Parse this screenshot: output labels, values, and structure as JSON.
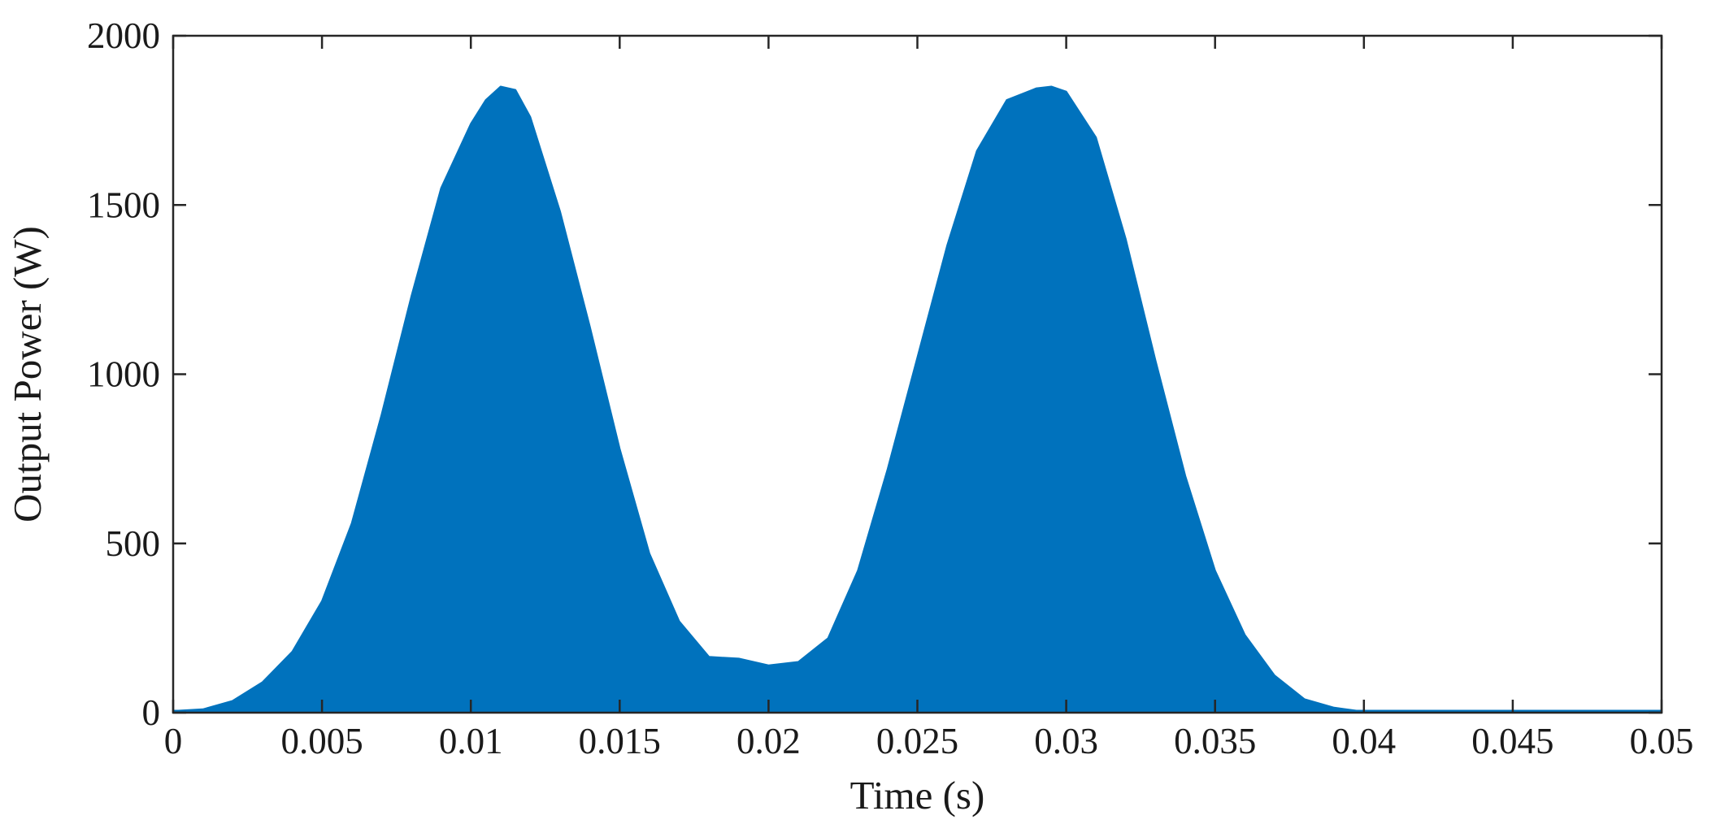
{
  "chart_data": {
    "type": "area",
    "title": "",
    "xlabel": "Time (s)",
    "ylabel": "Output Power (W)",
    "xlim": [
      0,
      0.05
    ],
    "ylim": [
      0,
      2000
    ],
    "xticks": [
      0,
      0.005,
      0.01,
      0.015,
      0.02,
      0.025,
      0.03,
      0.035,
      0.04,
      0.045,
      0.05
    ],
    "xtick_labels": [
      "0",
      "0.005",
      "0.01",
      "0.015",
      "0.02",
      "0.025",
      "0.03",
      "0.035",
      "0.04",
      "0.045",
      "0.05"
    ],
    "yticks": [
      0,
      500,
      1000,
      1500,
      2000
    ],
    "ytick_labels": [
      "0",
      "500",
      "1000",
      "1500",
      "2000"
    ],
    "grid": false,
    "box": true,
    "fill_color": "#0072bd",
    "series": [
      {
        "kind": "envelope",
        "x": [
          0,
          0.001,
          0.002,
          0.003,
          0.004,
          0.005,
          0.006,
          0.007,
          0.008,
          0.009,
          0.01,
          0.0105,
          0.011,
          0.0115,
          0.012,
          0.013,
          0.014,
          0.015,
          0.016,
          0.017,
          0.018,
          0.019,
          0.02,
          0.021,
          0.022,
          0.023,
          0.024,
          0.025,
          0.026,
          0.027,
          0.028,
          0.029,
          0.0295,
          0.03,
          0.031,
          0.032,
          0.033,
          0.034,
          0.035,
          0.036,
          0.037,
          0.038,
          0.039,
          0.04,
          0.041,
          0.045,
          0.05
        ],
        "y": [
          5,
          10,
          35,
          90,
          180,
          330,
          560,
          880,
          1230,
          1550,
          1740,
          1810,
          1850,
          1840,
          1760,
          1480,
          1140,
          780,
          470,
          270,
          165,
          160,
          140,
          150,
          220,
          420,
          720,
          1050,
          1380,
          1660,
          1810,
          1845,
          1850,
          1835,
          1700,
          1400,
          1040,
          700,
          420,
          230,
          110,
          40,
          15,
          3,
          1,
          0,
          0
        ]
      }
    ]
  }
}
